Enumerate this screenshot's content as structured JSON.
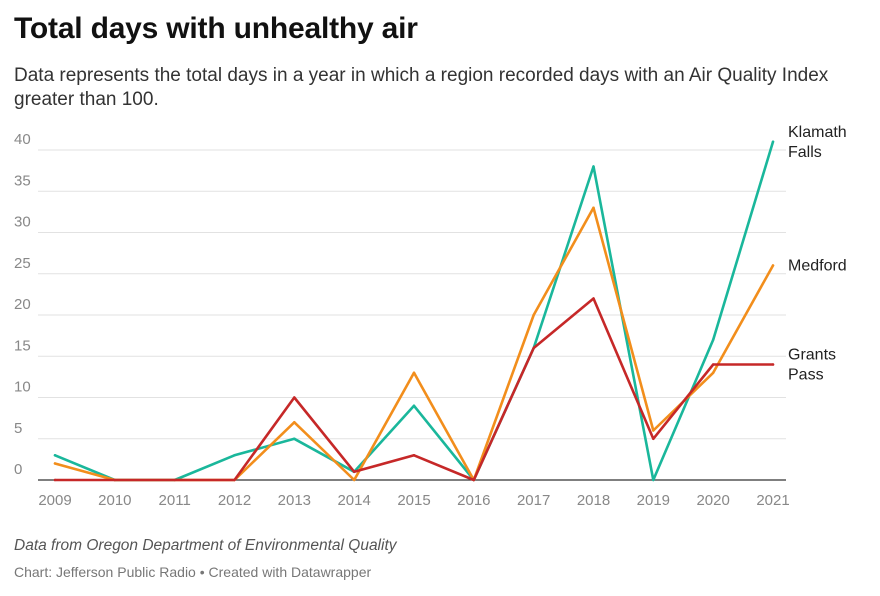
{
  "header": {
    "title": "Total days with unhealthy air",
    "subtitle": "Data represents the total days in a year in which a region recorded days with an Air Quality Index greater than 100."
  },
  "footer": {
    "source": "Data from Oregon Department of Environmental Quality",
    "credit": "Chart: Jefferson Public Radio • Created with Datawrapper"
  },
  "chart_data": {
    "type": "line",
    "title": "Total days with unhealthy air",
    "xlabel": "",
    "ylabel": "",
    "x": [
      2009,
      2010,
      2011,
      2012,
      2013,
      2014,
      2015,
      2016,
      2017,
      2018,
      2019,
      2020,
      2021
    ],
    "ylim": [
      0,
      40
    ],
    "yticks": [
      0,
      5,
      10,
      15,
      20,
      25,
      30,
      35,
      40
    ],
    "grid": true,
    "legend": "inline labels at right end of lines",
    "series": [
      {
        "name": "Klamath Falls",
        "label_lines": [
          "Klamath",
          "Falls"
        ],
        "color": "#1ab79b",
        "values": [
          3,
          0,
          0,
          3,
          5,
          1,
          9,
          0,
          16,
          38,
          0,
          17,
          41
        ]
      },
      {
        "name": "Medford",
        "label_lines": [
          "Medford"
        ],
        "color": "#f28e1c",
        "values": [
          2,
          0,
          0,
          0,
          7,
          0,
          13,
          0,
          20,
          33,
          6,
          13,
          26
        ]
      },
      {
        "name": "Grants Pass",
        "label_lines": [
          "Grants",
          "Pass"
        ],
        "color": "#c62828",
        "values": [
          0,
          0,
          0,
          0,
          10,
          1,
          3,
          0,
          16,
          22,
          5,
          14,
          14
        ]
      }
    ]
  }
}
